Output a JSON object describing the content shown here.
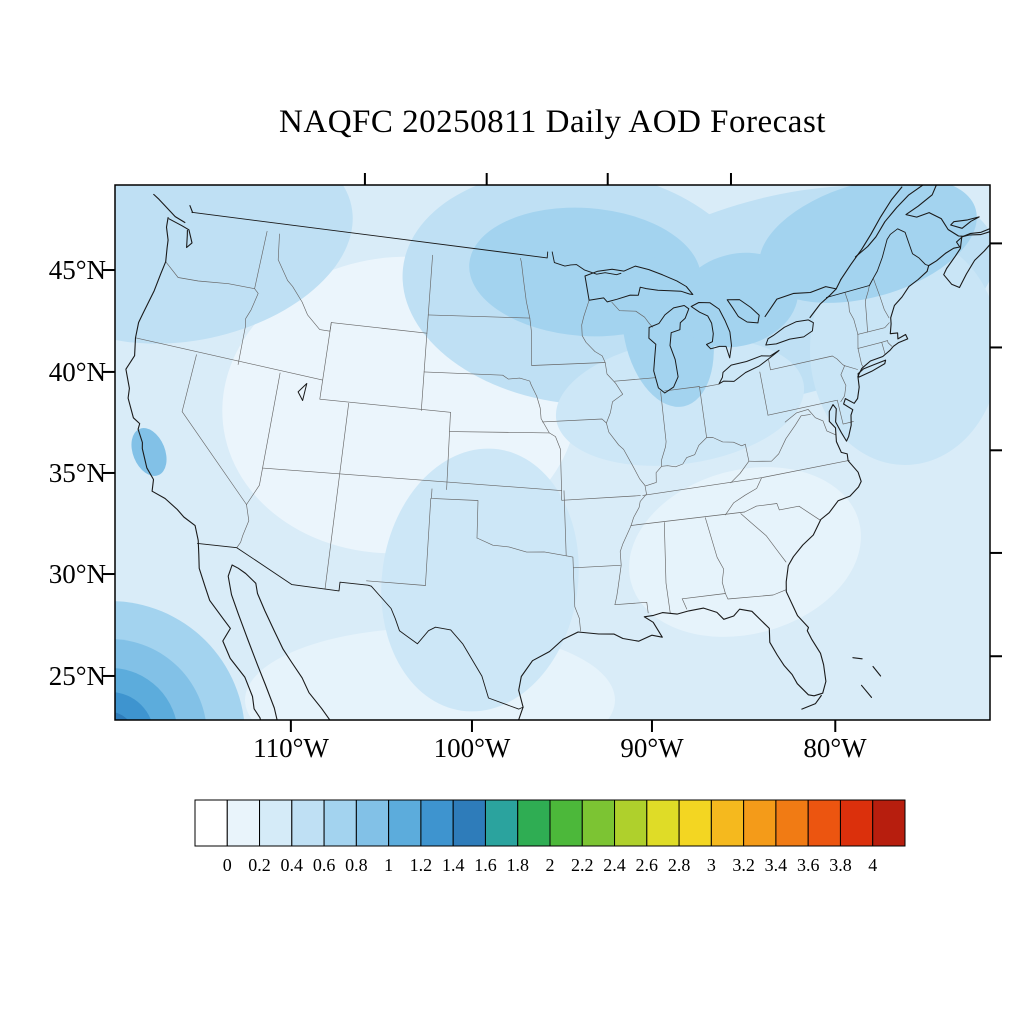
{
  "title": "NAQFC 20250811 Daily AOD Forecast",
  "axes": {
    "lat_ticks": [
      {
        "label": "45°N",
        "value": 45
      },
      {
        "label": "40°N",
        "value": 40
      },
      {
        "label": "35°N",
        "value": 35
      },
      {
        "label": "30°N",
        "value": 30
      },
      {
        "label": "25°N",
        "value": 25
      }
    ],
    "lon_ticks": [
      {
        "label": "110°W",
        "value": -110
      },
      {
        "label": "100°W",
        "value": -100
      },
      {
        "label": "90°W",
        "value": -90
      },
      {
        "label": "80°W",
        "value": -80
      }
    ]
  },
  "colorbar": {
    "min": 0,
    "max": 4,
    "interval": 0.2,
    "tick_labels": [
      "0",
      "0.2",
      "0.4",
      "0.6",
      "0.8",
      "1",
      "1.2",
      "1.4",
      "1.6",
      "1.8",
      "2",
      "2.2",
      "2.4",
      "2.6",
      "2.8",
      "3",
      "3.2",
      "3.4",
      "3.6",
      "3.8",
      "4"
    ],
    "colors": [
      "#FFFFFF",
      "#E9F4FB",
      "#D5EBF8",
      "#BFE0F4",
      "#A3D3EF",
      "#82C1E7",
      "#5CACDC",
      "#3E94CF",
      "#2E7CBA",
      "#2BA39E",
      "#2FAD53",
      "#4CB83A",
      "#7CC433",
      "#AFD02C",
      "#DFDC27",
      "#F3D622",
      "#F5B91E",
      "#F49B19",
      "#F17B14",
      "#EC5510",
      "#DB300C",
      "#B71E0E"
    ]
  },
  "chart_data": {
    "type": "heatmap",
    "title": "NAQFC 20250811 Daily AOD Forecast",
    "model": "NAQFC",
    "date": "20250811",
    "variable": "Daily Aerosol Optical Depth (AOD)",
    "region": "Contiguous United States with state borders (Lambert-conformal style view)",
    "legend_position": "bottom",
    "levels": [
      0,
      0.2,
      0.4,
      0.6,
      0.8,
      1,
      1.2,
      1.4,
      1.6,
      1.8,
      2,
      2.2,
      2.4,
      2.6,
      2.8,
      3,
      3.2,
      3.4,
      3.6,
      3.8,
      4
    ],
    "observed_pattern": [
      {
        "region": "Most of CONUS and surrounding ocean",
        "aod": "0.0-0.4"
      },
      {
        "region": "Interior west (WY/CO/KS/NE) and southeast (GA/SC)",
        "aod": "0.0-0.2"
      },
      {
        "region": "Upper Midwest, Great Lakes, St. Lawrence valley band",
        "aod": "0.4-0.8"
      },
      {
        "region": "Pacific Northwest coast",
        "aod": "0.4-0.6"
      },
      {
        "region": "San Francisco Bay area spot",
        "aod": "0.6-0.8"
      },
      {
        "region": "Far southwest ocean corner (bottom-left)",
        "aod": "0.8-1.2"
      }
    ]
  }
}
